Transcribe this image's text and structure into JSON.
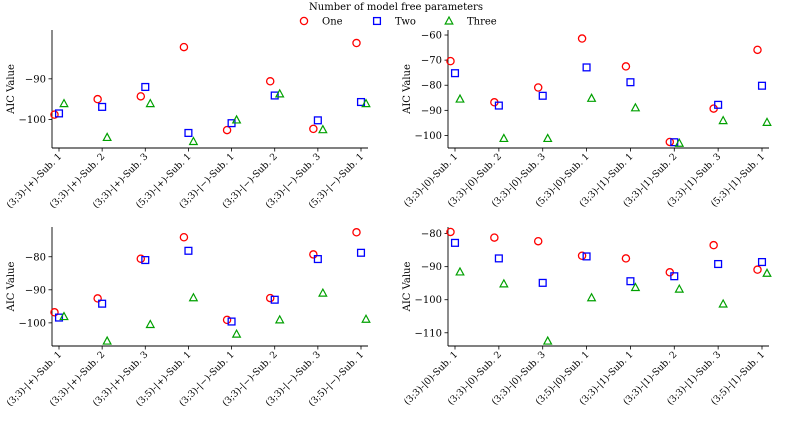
{
  "legend": {
    "title": "Number of model free parameters",
    "placement": "top-center",
    "entries": [
      {
        "name": "One",
        "marker": "circle",
        "color": "#ff0000"
      },
      {
        "name": "Two",
        "marker": "square",
        "color": "#0000ff"
      },
      {
        "name": "Three",
        "marker": "triangle",
        "color": "#00a000"
      }
    ]
  },
  "chart_data": [
    {
      "type": "scatter",
      "ylabel": "AIC Value",
      "ylim": [
        -107,
        -78
      ],
      "yticks": [
        -90,
        -100
      ],
      "categories": [
        "(3;3)-|+)-Sub. 1",
        "(3;3)-|+)-Sub. 2",
        "(3;3)-|+)-Sub. 3",
        "(5;3)-|+)-Sub. 1",
        "(3;3)-|−)-Sub. 1",
        "(3;3)-|−)-Sub. 2",
        "(3;3)-|−)-Sub. 3",
        "(5;3)-|−)-Sub. 1"
      ],
      "series": [
        {
          "name": "One",
          "values": [
            -98.8,
            -95.0,
            -94.3,
            -82.2,
            -102.6,
            -90.6,
            -102.3,
            -81.2
          ]
        },
        {
          "name": "Two",
          "values": [
            -98.5,
            -96.9,
            -92.0,
            -103.3,
            -100.9,
            -94.1,
            -100.2,
            -95.7
          ]
        },
        {
          "name": "Three",
          "values": [
            -96.1,
            -104.4,
            -96.1,
            -105.4,
            -100.1,
            -93.7,
            -102.5,
            -96.1
          ]
        }
      ]
    },
    {
      "type": "scatter",
      "ylabel": "AIC Value",
      "ylim": [
        -105,
        -58
      ],
      "yticks": [
        -60,
        -70,
        -80,
        -90,
        -100
      ],
      "categories": [
        "(3;3)-|0)-Sub. 1",
        "(3;3)-|0)-Sub. 2",
        "(3;3)-|0)-Sub. 3",
        "(5;3)-|0)-Sub. 1",
        "(3;3)-|1)-Sub. 1",
        "(3;3)-|1)-Sub. 2",
        "(3;3)-|1)-Sub. 3",
        "(5;3)-|1)-Sub. 1"
      ],
      "series": [
        {
          "name": "One",
          "values": [
            -70.4,
            -86.8,
            -80.9,
            -61.4,
            -72.5,
            -102.6,
            -89.3,
            -65.9
          ]
        },
        {
          "name": "Two",
          "values": [
            -75.2,
            -88.1,
            -84.2,
            -72.9,
            -78.8,
            -102.7,
            -87.8,
            -80.2
          ]
        },
        {
          "name": "Three",
          "values": [
            -85.5,
            -101.2,
            -101.2,
            -85.2,
            -89.0,
            -103.1,
            -94.1,
            -94.8
          ]
        }
      ]
    },
    {
      "type": "scatter",
      "ylabel": "AIC Value",
      "ylim": [
        -107,
        -71
      ],
      "yticks": [
        -80,
        -90,
        -100
      ],
      "categories": [
        "(3;3)-|+)-Sub. 1",
        "(3;3)-|+)-Sub. 2",
        "(3;3)-|+)-Sub. 3",
        "(3;5)-|+)-Sub. 1",
        "(3;3)-|−)-Sub. 1",
        "(3;3)-|−)-Sub. 2",
        "(3;3)-|−)-Sub. 3",
        "(3;5)-|−)-Sub. 1"
      ],
      "series": [
        {
          "name": "One",
          "values": [
            -96.8,
            -92.6,
            -80.6,
            -74.1,
            -99.1,
            -92.5,
            -79.3,
            -72.6
          ]
        },
        {
          "name": "Two",
          "values": [
            -98.4,
            -94.2,
            -81.0,
            -78.2,
            -99.6,
            -93.0,
            -80.7,
            -78.8
          ]
        },
        {
          "name": "Three",
          "values": [
            -98.1,
            -105.5,
            -100.5,
            -92.4,
            -103.4,
            -99.1,
            -91.0,
            -98.9
          ]
        }
      ]
    },
    {
      "type": "scatter",
      "ylabel": "AIC Value",
      "ylim": [
        -114,
        -78
      ],
      "yticks": [
        -80,
        -90,
        -100,
        -110
      ],
      "categories": [
        "(3;3)-|0)-Sub. 1",
        "(3;3)-|0)-Sub. 2",
        "(3;3)-|0)-Sub. 3",
        "(3;5)-|0)-Sub. 1",
        "(3;3)-|1)-Sub. 1",
        "(3;3)-|1)-Sub. 2",
        "(3;3)-|1)-Sub. 3",
        "(3;5)-|1)-Sub. 1"
      ],
      "series": [
        {
          "name": "One",
          "values": [
            -79.5,
            -81.2,
            -82.3,
            -86.7,
            -87.5,
            -91.7,
            -83.5,
            -90.9
          ]
        },
        {
          "name": "Two",
          "values": [
            -82.8,
            -87.5,
            -94.9,
            -86.9,
            -94.4,
            -92.9,
            -89.2,
            -88.6
          ]
        },
        {
          "name": "Three",
          "values": [
            -91.6,
            -95.2,
            -112.5,
            -99.4,
            -96.3,
            -96.8,
            -101.3,
            -92.0
          ]
        }
      ]
    }
  ]
}
